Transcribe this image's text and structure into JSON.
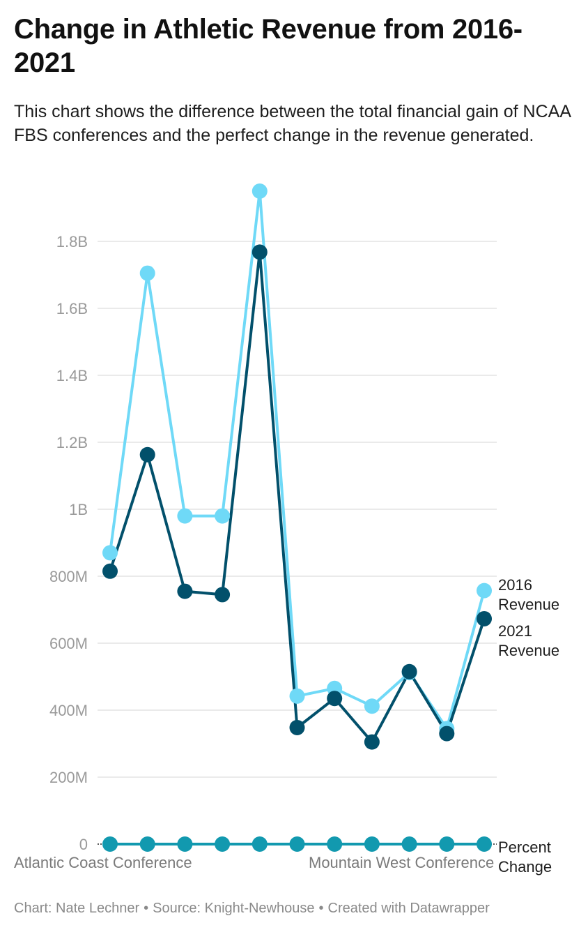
{
  "title": "Change in Athletic Revenue from 2016-2021",
  "subtitle": "This chart shows the difference between the total financial gain of NCAA FBS conferences and the perfect change in the revenue generated.",
  "footer": {
    "chart_by": "Chart: Nate Lechner",
    "source": "Source: Knight-Newhouse",
    "created": "Created with Datawrapper",
    "separator": "•"
  },
  "colors": {
    "revenue_2016": "#6fd9f7",
    "revenue_2021": "#02506b",
    "percent_change": "#1299af",
    "grid": "#e3e3e3",
    "axis_text": "#9a9a9a",
    "label_text": "#1d1d1d"
  },
  "chart_data": {
    "type": "line",
    "x_tick_labels": [
      "Atlantic Coast Conference",
      "Mountain West Conference"
    ],
    "x": [
      1,
      2,
      3,
      4,
      5,
      6,
      7,
      8,
      9,
      10,
      11
    ],
    "ylim": [
      0,
      1950000000
    ],
    "yticks": [
      {
        "value": 0,
        "label": "0"
      },
      {
        "value": 200000000,
        "label": "200M"
      },
      {
        "value": 400000000,
        "label": "400M"
      },
      {
        "value": 600000000,
        "label": "600M"
      },
      {
        "value": 800000000,
        "label": "800M"
      },
      {
        "value": 1000000000,
        "label": "1B"
      },
      {
        "value": 1200000000,
        "label": "1.2B"
      },
      {
        "value": 1400000000,
        "label": "1.4B"
      },
      {
        "value": 1600000000,
        "label": "1.6B"
      },
      {
        "value": 1800000000,
        "label": "1.8B"
      }
    ],
    "grid": true,
    "legend": "inline-right",
    "series": [
      {
        "name": "2016 Revenue",
        "label_lines": [
          "2016",
          "Revenue"
        ],
        "values": [
          870000000,
          1705000000,
          980000000,
          980000000,
          1950000000,
          442000000,
          465000000,
          412000000,
          512000000,
          345000000,
          757000000
        ]
      },
      {
        "name": "2021 Revenue",
        "label_lines": [
          "2021",
          "Revenue"
        ],
        "values": [
          815000000,
          1163000000,
          755000000,
          745000000,
          1768000000,
          348000000,
          435000000,
          305000000,
          515000000,
          330000000,
          673000000
        ]
      },
      {
        "name": "Percent Change",
        "label_lines": [
          "Percent",
          "Change"
        ],
        "values": [
          0,
          0,
          0,
          0,
          0,
          0,
          0,
          0,
          0,
          0,
          0
        ]
      }
    ]
  }
}
